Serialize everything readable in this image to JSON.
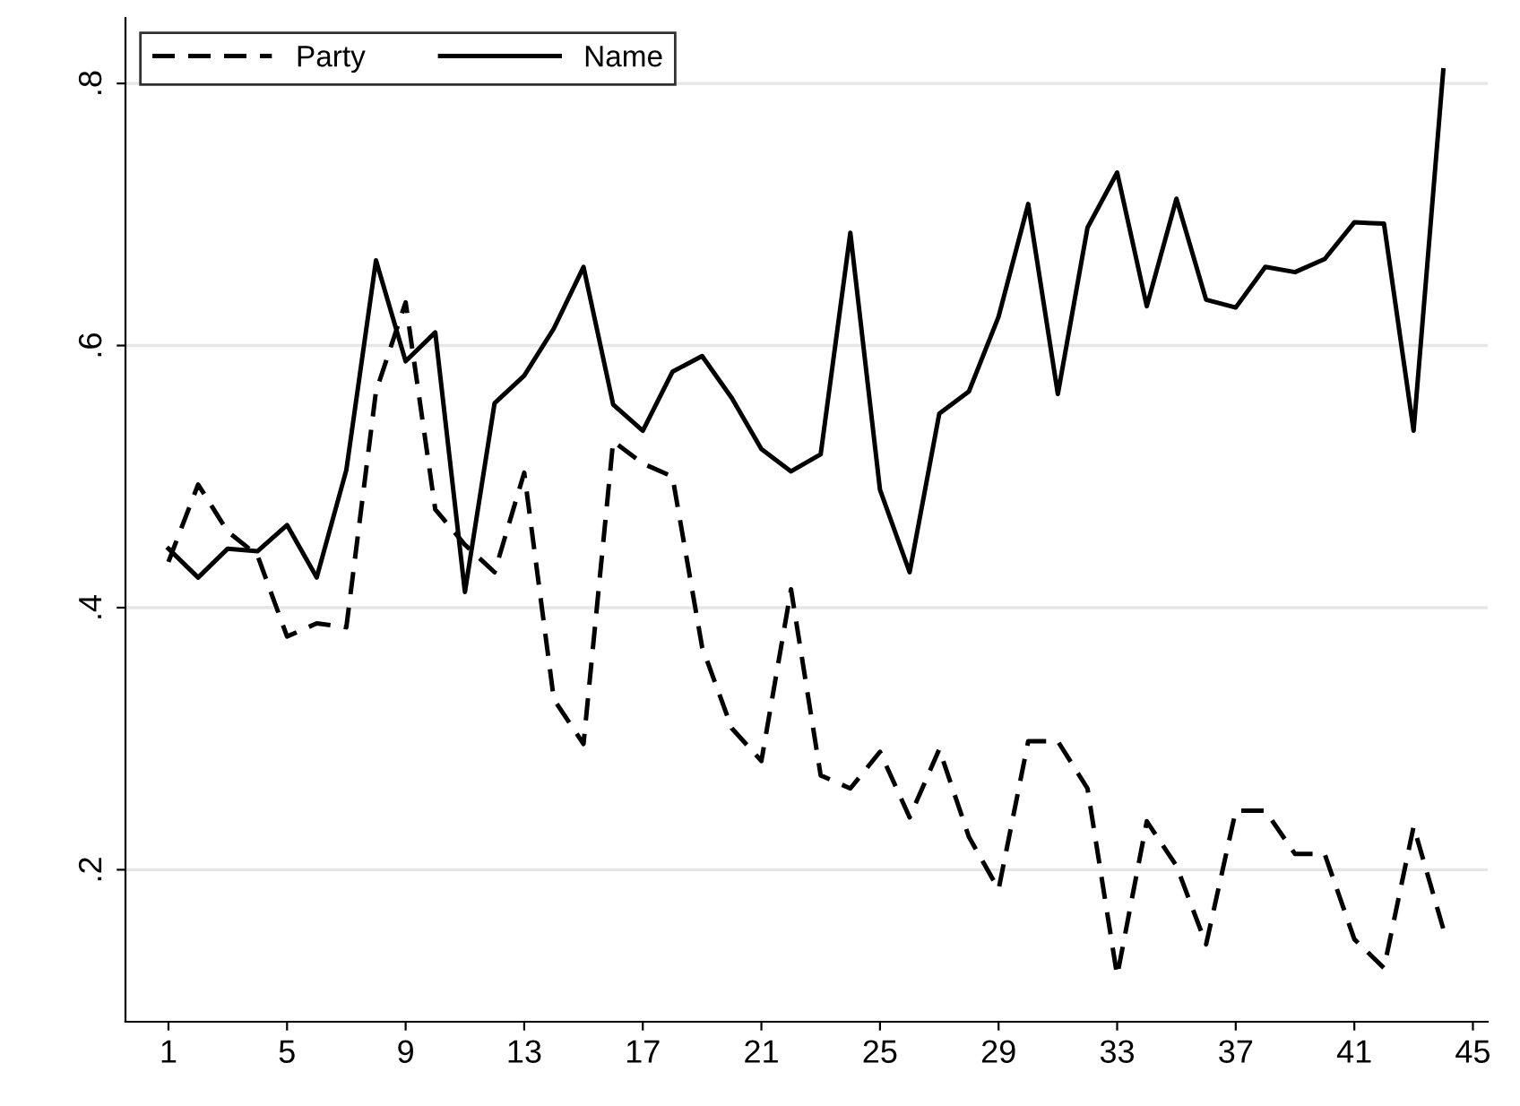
{
  "chart_data": {
    "type": "line",
    "x": [
      1,
      2,
      3,
      4,
      5,
      6,
      7,
      8,
      9,
      10,
      11,
      12,
      13,
      14,
      15,
      16,
      17,
      18,
      19,
      20,
      21,
      22,
      23,
      24,
      25,
      26,
      27,
      28,
      29,
      30,
      31,
      32,
      33,
      34,
      35,
      36,
      37,
      38,
      39,
      40,
      41,
      42,
      43,
      44
    ],
    "series": [
      {
        "name": "Party",
        "color": "#000000",
        "line_style": "dashed",
        "values": [
          0.435,
          0.494,
          0.458,
          0.44,
          0.378,
          0.388,
          0.385,
          0.565,
          0.633,
          0.475,
          0.448,
          0.427,
          0.503,
          0.33,
          0.296,
          0.527,
          0.51,
          0.5,
          0.37,
          0.308,
          0.283,
          0.414,
          0.272,
          0.262,
          0.29,
          0.24,
          0.292,
          0.225,
          0.185,
          0.298,
          0.298,
          0.262,
          0.119,
          0.237,
          0.203,
          0.143,
          0.245,
          0.245,
          0.212,
          0.212,
          0.147,
          0.125,
          0.233,
          0.155
        ]
      },
      {
        "name": "Name",
        "color": "#000000",
        "line_style": "solid",
        "values": [
          0.445,
          0.423,
          0.445,
          0.443,
          0.463,
          0.423,
          0.505,
          0.665,
          0.588,
          0.61,
          0.412,
          0.556,
          0.577,
          0.613,
          0.66,
          0.555,
          0.535,
          0.58,
          0.592,
          0.56,
          0.521,
          0.504,
          0.517,
          0.686,
          0.49,
          0.427,
          0.548,
          0.565,
          0.622,
          0.708,
          0.563,
          0.69,
          0.732,
          0.63,
          0.712,
          0.635,
          0.629,
          0.66,
          0.656,
          0.666,
          0.694,
          0.693,
          0.535,
          0.81
        ]
      }
    ],
    "xlim": [
      -0.45,
      45.5
    ],
    "xticks": [
      1,
      5,
      9,
      13,
      17,
      21,
      25,
      29,
      33,
      37,
      41,
      45
    ],
    "ylim": [
      0.084,
      0.85
    ],
    "yticks": [
      {
        "value": 0.2,
        "label": ".2"
      },
      {
        "value": 0.4,
        "label": ".4"
      },
      {
        "value": 0.6,
        "label": ".6"
      },
      {
        "value": 0.8,
        "label": ".8"
      }
    ],
    "grid": "y",
    "legend": "top left",
    "marker": "none"
  }
}
